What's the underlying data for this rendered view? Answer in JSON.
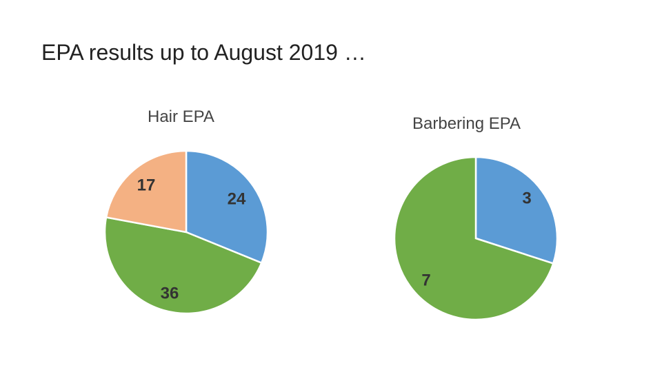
{
  "page": {
    "title": "EPA results up to August 2019 …"
  },
  "chart_data": [
    {
      "type": "pie",
      "title": "Hair EPA",
      "categories": [
        "",
        "",
        ""
      ],
      "values": [
        24,
        36,
        17
      ],
      "colors": [
        "#5B9BD5",
        "#70AD47",
        "#F4B183"
      ],
      "labels": [
        "24",
        "36",
        "17"
      ]
    },
    {
      "type": "pie",
      "title": "Barbering EPA",
      "categories": [
        "",
        ""
      ],
      "values": [
        3,
        7
      ],
      "colors": [
        "#5B9BD5",
        "#70AD47"
      ],
      "labels": [
        "3",
        "7"
      ]
    }
  ]
}
